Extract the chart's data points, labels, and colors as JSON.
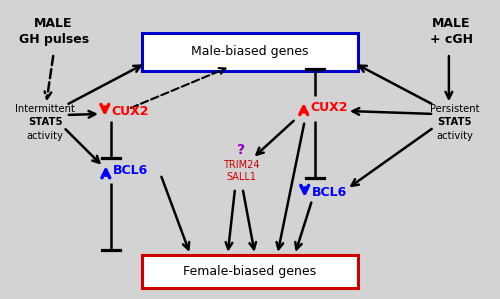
{
  "bg_color": "#d3d3d3",
  "male_gh_text_line1": "MALE",
  "male_gh_text_line2": "GH pulses",
  "male_cgh_text_line1": "MALE",
  "male_cgh_text_line2": "+ cGH",
  "male_biased_box_text": "Male-biased genes",
  "female_biased_box_text": "Female-biased genes",
  "male_biased_box_color": "#0000cc",
  "female_biased_box_color": "#cc0000",
  "cux2_color": "#cc0000",
  "bcl6_color": "#0000cc",
  "trim24_color": "#cc0000",
  "question_color": "#9900cc",
  "arrow_color": "#000000",
  "text_color": "#000000"
}
